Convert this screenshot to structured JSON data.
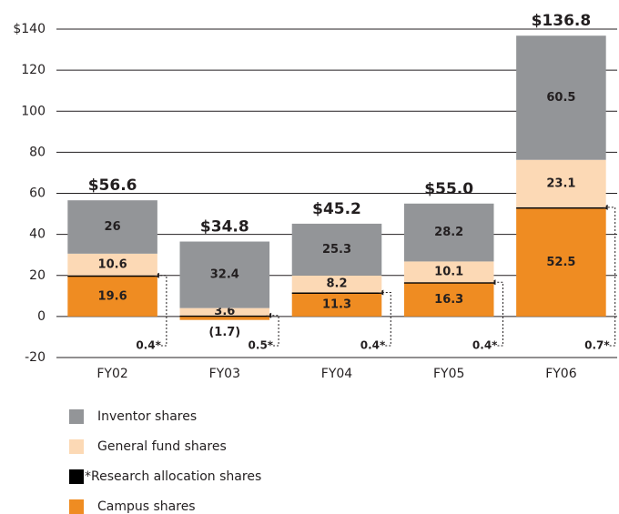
{
  "chart_data": {
    "type": "stacked_bar",
    "categories": [
      "FY02",
      "FY03",
      "FY04",
      "FY05",
      "FY06"
    ],
    "series": [
      {
        "name": "Campus shares",
        "color": "#ef8c22",
        "values": [
          19.6,
          -1.7,
          11.3,
          16.3,
          52.5
        ],
        "value_labels": [
          "19.6",
          "(1.7)",
          "11.3",
          "16.3",
          "52.5"
        ]
      },
      {
        "name": "*Research allocation shares",
        "color": "#000000",
        "values": [
          0.4,
          0.5,
          0.4,
          0.4,
          0.7
        ],
        "value_labels": [
          "0.4*",
          "0.5*",
          "0.4*",
          "0.4*",
          "0.7*"
        ]
      },
      {
        "name": "General fund shares",
        "color": "#fcd9b5",
        "values": [
          10.6,
          3.6,
          8.2,
          10.1,
          23.1
        ]
      },
      {
        "name": "Inventor shares",
        "color": "#939598",
        "values": [
          26.0,
          32.4,
          25.3,
          28.2,
          60.5
        ]
      }
    ],
    "totals": {
      "values": [
        56.6,
        34.8,
        45.2,
        55.0,
        136.8
      ],
      "value_labels": [
        "$56.6",
        "$34.8",
        "$45.2",
        "$55.0",
        "$136.8"
      ]
    },
    "ylim": [
      -20,
      140
    ],
    "yticks": [
      -20,
      0,
      20,
      40,
      60,
      80,
      100,
      120,
      {
        "value": 140,
        "label": "$140"
      }
    ],
    "grid": true
  }
}
